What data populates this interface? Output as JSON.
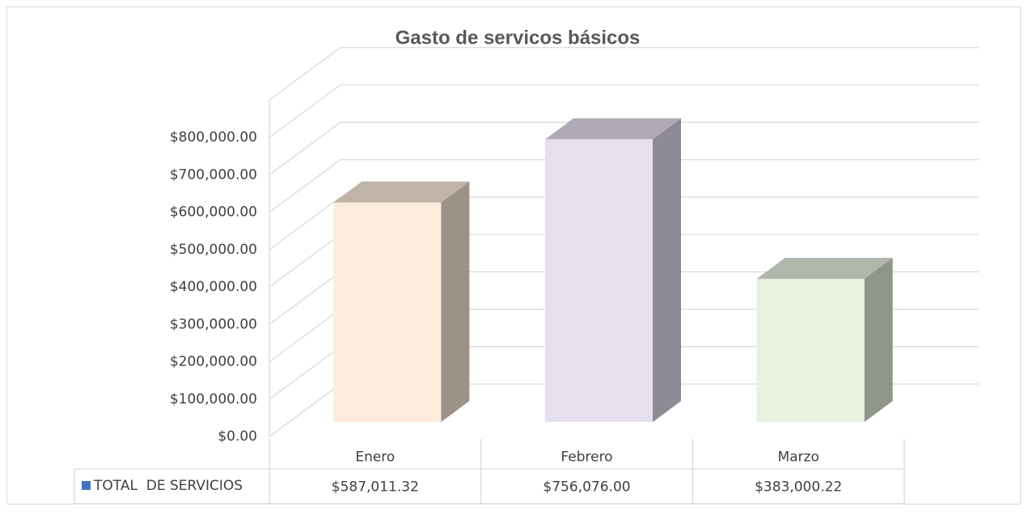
{
  "chart_data": {
    "type": "bar3d",
    "title": "Gasto de servicos básicos",
    "categories": [
      "Enero",
      "Febrero",
      "Marzo"
    ],
    "series": [
      {
        "name": "TOTAL  DE SERVICIOS",
        "color": "#4472c4",
        "values": [
          587011.32,
          756076.0,
          383000.22
        ],
        "value_labels": [
          "$587,011.32",
          "$756,076.00",
          "$383,000.22"
        ]
      }
    ],
    "colors": [
      "#fdebdc",
      "#e6e0ee",
      "#e8f0df"
    ],
    "ylim": [
      0,
      800000
    ],
    "yticks": [
      {
        "value": 0,
        "label": "$0.00"
      },
      {
        "value": 100000,
        "label": "$100,000.00"
      },
      {
        "value": 200000,
        "label": "$200,000.00"
      },
      {
        "value": 300000,
        "label": "$300,000.00"
      },
      {
        "value": 400000,
        "label": "$400,000.00"
      },
      {
        "value": 500000,
        "label": "$500,000.00"
      },
      {
        "value": 600000,
        "label": "$600,000.00"
      },
      {
        "value": 700000,
        "label": "$700,000.00"
      },
      {
        "value": 800000,
        "label": "$800,000.00"
      }
    ],
    "grid": true,
    "legend": "table"
  }
}
